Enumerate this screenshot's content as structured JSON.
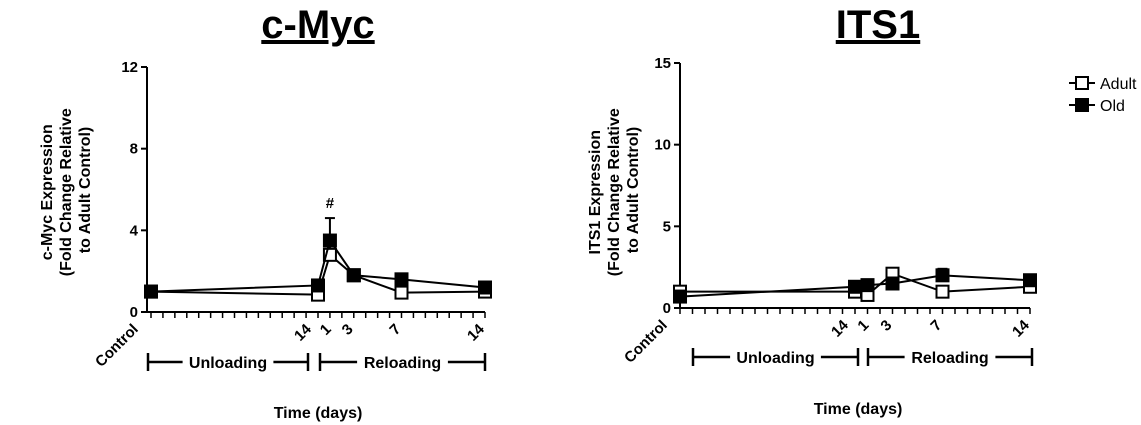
{
  "chart_data": [
    {
      "type": "line",
      "title": "c-Myc",
      "ylabel_lines": [
        "c-Myc Expression",
        "(Fold Change Relative",
        "to Adult Control)"
      ],
      "xlabel": "Time (days)",
      "ylim": [
        0,
        12
      ],
      "yticks": [
        0,
        4,
        8,
        12
      ],
      "x_tick_labels": [
        "Control",
        "14",
        "1",
        "3",
        "7",
        "14"
      ],
      "periods": [
        "Unloading",
        "Reloading"
      ],
      "annotation": "#",
      "series": [
        {
          "name": "Adult",
          "marker": "open-square",
          "x": [
            0,
            14,
            15,
            17,
            21,
            28
          ],
          "y": [
            1.0,
            0.85,
            2.8,
            1.8,
            0.95,
            1.0
          ],
          "err": [
            0.1,
            0.1,
            0.5,
            0.2,
            0.15,
            0.15
          ]
        },
        {
          "name": "Old",
          "marker": "filled-square",
          "x": [
            0,
            14,
            15,
            17,
            21,
            28
          ],
          "y": [
            1.0,
            1.3,
            3.5,
            1.8,
            1.6,
            1.2
          ],
          "err": [
            0.1,
            0.15,
            1.1,
            0.2,
            0.15,
            0.15
          ]
        }
      ]
    },
    {
      "type": "line",
      "title": "ITS1",
      "ylabel_lines": [
        "ITS1 Expression",
        "(Fold Change Relative",
        "to Adult Control)"
      ],
      "xlabel": "Time (days)",
      "ylim": [
        0,
        15
      ],
      "yticks": [
        0,
        5,
        10,
        15
      ],
      "x_tick_labels": [
        "Control",
        "14",
        "1",
        "3",
        "7",
        "14"
      ],
      "periods": [
        "Unloading",
        "Reloading"
      ],
      "series": [
        {
          "name": "Adult",
          "marker": "open-square",
          "x": [
            0,
            14,
            15,
            17,
            21,
            28
          ],
          "y": [
            1.0,
            1.0,
            0.8,
            2.1,
            1.0,
            1.3
          ],
          "err": [
            0.1,
            0.15,
            0.15,
            0.2,
            0.15,
            0.2
          ]
        },
        {
          "name": "Old",
          "marker": "filled-square",
          "x": [
            0,
            14,
            15,
            17,
            21,
            28
          ],
          "y": [
            0.7,
            1.3,
            1.4,
            1.5,
            2.0,
            1.7
          ],
          "err": [
            0.1,
            0.15,
            0.2,
            0.2,
            0.4,
            0.3
          ]
        }
      ],
      "legend": {
        "placement": "top-right",
        "entries": [
          "Adult",
          "Old"
        ]
      }
    }
  ]
}
